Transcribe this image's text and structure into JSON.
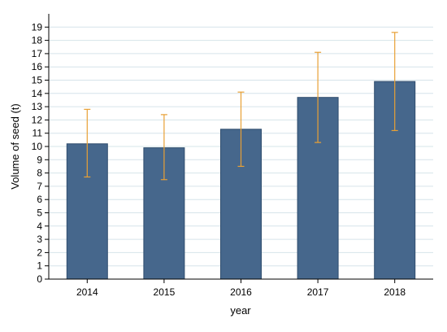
{
  "chart_data": {
    "type": "bar",
    "categories": [
      "2014",
      "2015",
      "2016",
      "2017",
      "2018"
    ],
    "values": [
      10.2,
      9.9,
      11.3,
      13.7,
      14.9
    ],
    "error_low": [
      7.7,
      7.5,
      8.5,
      10.3,
      11.2
    ],
    "error_high": [
      12.8,
      12.4,
      14.1,
      17.1,
      18.6
    ],
    "xlabel": "year",
    "ylabel": "Volume of seed (t)",
    "ylim": [
      0,
      20
    ],
    "yticks": [
      0,
      1,
      2,
      3,
      4,
      5,
      6,
      7,
      8,
      9,
      10,
      11,
      12,
      13,
      14,
      15,
      16,
      17,
      18,
      19
    ],
    "grid": true,
    "colors": {
      "bar": "#46678c",
      "bar_edge": "#2f4d6e",
      "error_bar": "#e8a035",
      "grid": "#d6e4ea",
      "axis": "#000000"
    }
  }
}
